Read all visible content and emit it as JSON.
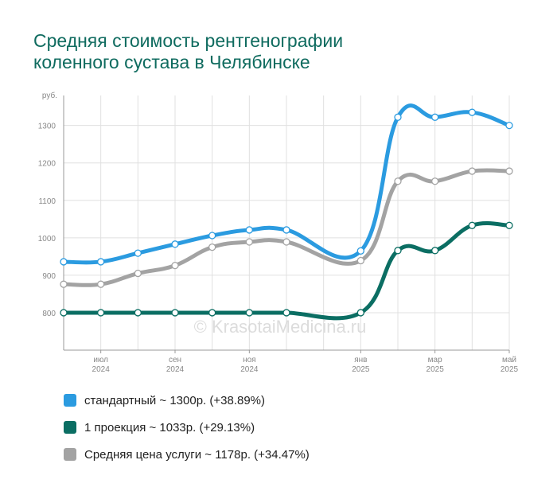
{
  "title": {
    "line1": "Средняя стоимость рентгенографии",
    "line2": "коленного сустава в Челябинске"
  },
  "watermark": "© KrasotaiMedicina.ru",
  "colors": {
    "standard": "#2b9be0",
    "one_projection": "#0b6e63",
    "average": "#a3a3a3",
    "title": "#0f6b5f",
    "grid": "#e0e0e0",
    "axis": "#999999",
    "tick_text": "#888888"
  },
  "chart_data": {
    "type": "line",
    "y_unit": "руб.",
    "ylim": [
      700,
      1380
    ],
    "y_ticks": [
      800,
      900,
      1000,
      1100,
      1200,
      1300
    ],
    "grid": true,
    "legend_position": "bottom",
    "x": [
      "2024-05",
      "2024-06",
      "2024-07",
      "2024-08",
      "2024-09",
      "2024-10",
      "2024-11",
      "2024-12",
      "2025-01",
      "2025-02",
      "2025-03",
      "2025-04",
      "2025-05"
    ],
    "x_tick_labels": [
      {
        "month": "июл",
        "year": "2024",
        "at": "2024-06"
      },
      {
        "month": "сен",
        "year": "2024",
        "at": "2024-08"
      },
      {
        "month": "ноя",
        "year": "2024",
        "at": "2024-10"
      },
      {
        "month": "янв",
        "year": "2025",
        "at": "2025-01"
      },
      {
        "month": "мар",
        "year": "2025",
        "at": "2025-03"
      },
      {
        "month": "май",
        "year": "2025",
        "at": "2025-05"
      }
    ],
    "series": [
      {
        "name": "стандартный",
        "summary": "стандартный ~ 1300р. (+38.89%)",
        "color": "#2b9be0",
        "values": [
          936,
          936,
          959,
          983,
          1006,
          1021,
          1021,
          965,
          1322,
          1322,
          1335,
          1300
        ],
        "x": [
          "2024-05",
          "2024-06",
          "2024-07",
          "2024-08",
          "2024-09",
          "2024-10",
          "2024-11",
          "2025-01",
          "2025-02",
          "2025-03",
          "2025-04",
          "2025-05"
        ]
      },
      {
        "name": "1 проекция",
        "summary": "1 проекция ~ 1033р. (+29.13%)",
        "color": "#0b6e63",
        "values": [
          800,
          800,
          800,
          800,
          800,
          800,
          800,
          800,
          966,
          966,
          1033,
          1033
        ],
        "x": [
          "2024-05",
          "2024-06",
          "2024-07",
          "2024-08",
          "2024-09",
          "2024-10",
          "2024-11",
          "2025-01",
          "2025-02",
          "2025-03",
          "2025-04",
          "2025-05"
        ]
      },
      {
        "name": "Средняя цена услуги",
        "summary": "Средняя цена услуги ~ 1178р. (+34.47%)",
        "color": "#a3a3a3",
        "values": [
          876,
          876,
          905,
          926,
          975,
          989,
          989,
          939,
          1151,
          1151,
          1178,
          1178
        ],
        "x": [
          "2024-05",
          "2024-06",
          "2024-07",
          "2024-08",
          "2024-09",
          "2024-10",
          "2024-11",
          "2025-01",
          "2025-02",
          "2025-03",
          "2025-04",
          "2025-05"
        ]
      }
    ]
  }
}
